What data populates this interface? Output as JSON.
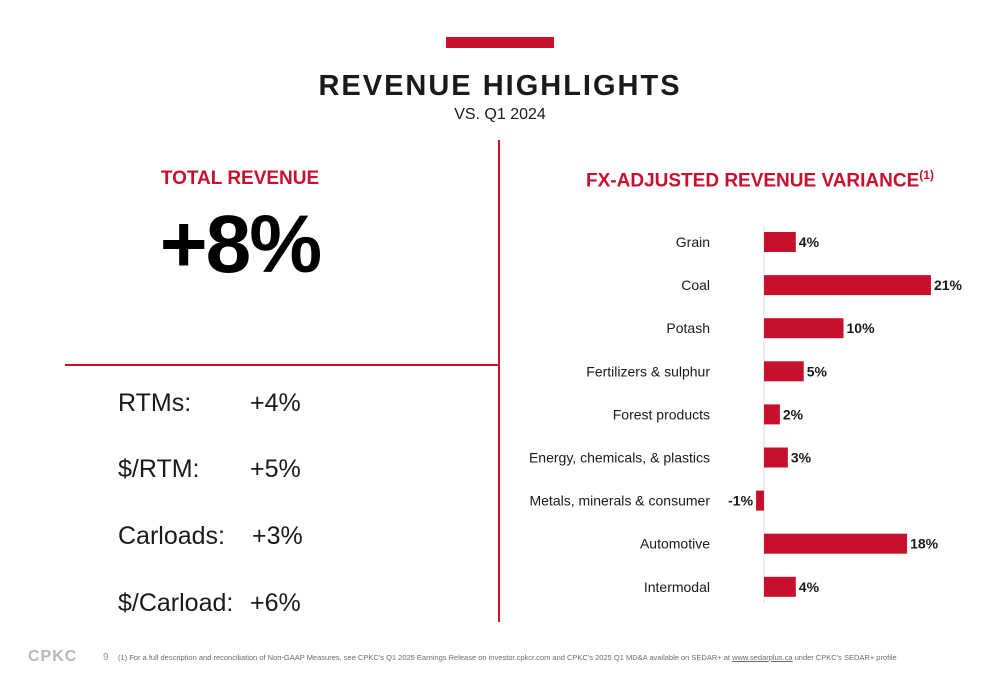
{
  "header": {
    "title": "REVENUE HIGHLIGHTS",
    "subtitle": "VS. Q1 2024"
  },
  "left_panel": {
    "heading": "TOTAL REVENUE",
    "value": "+8%",
    "metrics": [
      {
        "label": "RTMs:",
        "value": "+4%"
      },
      {
        "label": "$/RTM:",
        "value": "+5%"
      },
      {
        "label": "Carloads:",
        "value": "+3%"
      },
      {
        "label": "$/Carload:",
        "value": "+6%"
      }
    ]
  },
  "right_panel": {
    "heading": "FX-ADJUSTED REVENUE VARIANCE",
    "heading_sup": "(1)"
  },
  "chart_data": {
    "type": "bar",
    "orientation": "horizontal",
    "title": "FX-ADJUSTED REVENUE VARIANCE(1)",
    "categories": [
      "Grain",
      "Coal",
      "Potash",
      "Fertilizers & sulphur",
      "Forest products",
      "Energy, chemicals, & plastics",
      "Metals, minerals & consumer",
      "Automotive",
      "Intermodal"
    ],
    "values": [
      4,
      21,
      10,
      5,
      2,
      3,
      -1,
      18,
      4
    ],
    "data_labels": [
      "4%",
      "21%",
      "10%",
      "5%",
      "2%",
      "3%",
      "-1%",
      "18%",
      "4%"
    ],
    "unit": "%",
    "xlim": [
      -1,
      21
    ],
    "grid": false,
    "legend": "none",
    "bar_color": "#c8102e"
  },
  "footer": {
    "logo": "CPKC",
    "page": "9",
    "note_prefix": "(1) For a full description and reconciliation of Non-GAAP Measures, see CPKC's Q1 2025 Earnings Release on investor.cpkcr.com and CPKC's 2025 Q1 MD&A available on SEDAR+ at ",
    "note_link": "www.sedarplus.ca",
    "note_suffix": " under CPKC's SEDAR+ profile"
  },
  "colors": {
    "accent": "#c8102e",
    "text": "#1a1a1a"
  }
}
